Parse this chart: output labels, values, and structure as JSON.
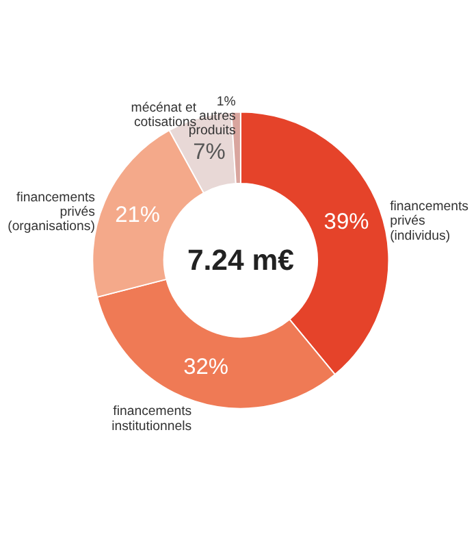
{
  "chart_data": {
    "type": "donut",
    "categories": [
      "financements privés (individus)",
      "financements institutionnels",
      "financements privés (organisations)",
      "mécénat et cotisations",
      "autres produits"
    ],
    "values": [
      39,
      32,
      21,
      7,
      1
    ],
    "colors": [
      "#e5432a",
      "#ef7a55",
      "#f4a98a",
      "#e8d8d6",
      "#d9a59e"
    ],
    "value_labels": [
      "39%",
      "32%",
      "21%",
      "7%",
      "1%"
    ],
    "annotations": [
      "7.24 m€"
    ],
    "legend": false
  }
}
